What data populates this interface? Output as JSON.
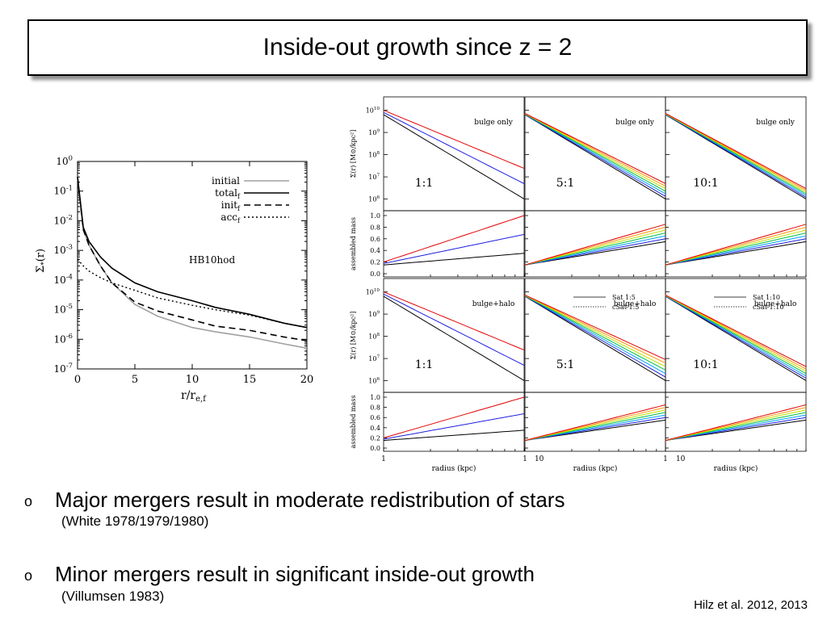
{
  "slide": {
    "title": "Inside-out growth since z = 2",
    "bullets": [
      {
        "marker": "o",
        "text": "Major mergers result in moderate redistribution of stars",
        "citation": "(White  1978/1979/1980)"
      },
      {
        "marker": "o",
        "text": "Minor mergers result in significant inside-out growth",
        "citation": "(Villumsen 1983)"
      }
    ],
    "reference": "Hilz  et al. 2012, 2013"
  },
  "colors": {
    "initial": "#a0a0a0",
    "total": "#000000"
  },
  "chart_data": [
    {
      "type": "line",
      "xlabel": "r/r_{e,f}",
      "ylabel": "Σ*(r)",
      "xlim": [
        0,
        20
      ],
      "ylim": [
        1e-07,
        1
      ],
      "yscale": "log",
      "x_ticks": [
        "0",
        "5",
        "10",
        "15",
        "20"
      ],
      "y_ticks": [
        "10^0",
        "10^-1",
        "10^-2",
        "10^-3",
        "10^-4",
        "10^-5",
        "10^-6",
        "10^-7"
      ],
      "annotation": "HB10hod",
      "legend_position": "top-right",
      "series": [
        {
          "name": "initial",
          "style": "solid-gray",
          "x": [
            0,
            0.5,
            1,
            2,
            3,
            5,
            7,
            10,
            12,
            15,
            18,
            20
          ],
          "y": [
            0.3,
            0.005,
            0.0015,
            0.0003,
            8e-05,
            1.5e-05,
            6e-06,
            2.5e-06,
            1.8e-06,
            1.2e-06,
            7e-07,
            5e-07
          ]
        },
        {
          "name": "total_f",
          "style": "solid-black",
          "x": [
            0,
            0.5,
            1,
            2,
            3,
            5,
            7,
            10,
            12,
            15,
            18,
            20
          ],
          "y": [
            0.3,
            0.006,
            0.002,
            0.0006,
            0.00025,
            8e-05,
            4e-05,
            2e-05,
            1.2e-05,
            7e-06,
            3.5e-06,
            2.5e-06
          ]
        },
        {
          "name": "init_f",
          "style": "dashed",
          "x": [
            0,
            0.5,
            1,
            2,
            3,
            5,
            7,
            10,
            12,
            15,
            18,
            20
          ],
          "y": [
            0.3,
            0.005,
            0.0015,
            0.0003,
            8e-05,
            1.8e-05,
            9e-06,
            4.5e-06,
            2.8e-06,
            2e-06,
            1.2e-06,
            9e-07
          ]
        },
        {
          "name": "acc_f",
          "style": "dotted",
          "x": [
            0,
            0.5,
            1,
            2,
            3,
            5,
            7,
            10,
            12,
            15,
            18,
            20
          ],
          "y": [
            0.0005,
            0.0003,
            0.0002,
            0.00012,
            8e-05,
            4.5e-05,
            2.5e-05,
            1.4e-05,
            1e-05,
            6.5e-06,
            3.5e-06,
            2.5e-06
          ]
        }
      ]
    },
    {
      "type": "line",
      "panels": [
        {
          "ratio": "1:1",
          "label": "bulge only",
          "x_ticks": [
            "1",
            "10"
          ],
          "xlabel": "radius (kpc)",
          "ylabel_top": "Σ(r) [M⊙/kpc²]",
          "ylabel_bottom": "assembled mass"
        },
        {
          "ratio": "5:1",
          "label": "bulge only"
        },
        {
          "ratio": "10:1",
          "label": "bulge only"
        },
        {
          "ratio": "1:1",
          "label": "bulge+halo"
        },
        {
          "ratio": "5:1",
          "label": "bulge+halo",
          "legend": [
            "Sat 1:5",
            "cSat 1:5"
          ]
        },
        {
          "ratio": "10:1",
          "label": "bulge+halo",
          "legend": [
            "Sat 1:10",
            "cSat 1:10"
          ]
        }
      ],
      "top_y_ticks": [
        "10^10",
        "10^9",
        "10^8",
        "10^7",
        "10^6"
      ],
      "bottom_y_ticks": [
        "1.0",
        "0.8",
        "0.6",
        "0.4",
        "0.2",
        "0.0"
      ],
      "x_ticks": [
        "1",
        "10"
      ],
      "xlabel": "radius (kpc)",
      "series_colors": [
        "#000000",
        "#2020e0",
        "#00a0ff",
        "#00c040",
        "#c0e000",
        "#ff9000",
        "#e00000"
      ]
    }
  ]
}
